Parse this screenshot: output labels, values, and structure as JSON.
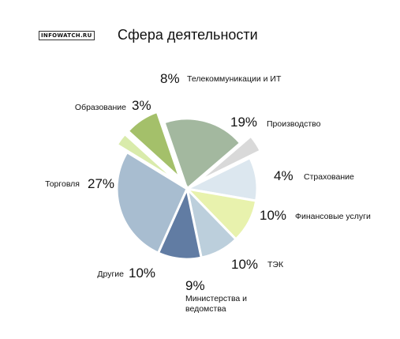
{
  "brand": "INFOWATCH.RU",
  "chart_data": {
    "type": "pie",
    "title": "Сфера деятельности",
    "slices": [
      {
        "label": "Производство",
        "value": 19,
        "value_label": "19%",
        "color": "#a3b89f",
        "exploded": false
      },
      {
        "label": "Страхование",
        "value": 4,
        "value_label": "4%",
        "color": "#d9d9d9",
        "exploded": true
      },
      {
        "label": "Финансовые услуги",
        "value": 10,
        "value_label": "10%",
        "color": "#dce7ef",
        "exploded": false
      },
      {
        "label": "ТЭК",
        "value": 10,
        "value_label": "10%",
        "color": "#e8f2ad",
        "exploded": false
      },
      {
        "label": [
          "Министерства и",
          "ведомства"
        ],
        "value": 9,
        "value_label": "9%",
        "color": "#bccfdc",
        "exploded": false
      },
      {
        "label": "Другие",
        "value": 10,
        "value_label": "10%",
        "color": "#617ca3",
        "exploded": false
      },
      {
        "label": "Торговля",
        "value": 27,
        "value_label": "27%",
        "color": "#a8bdd0",
        "exploded": false
      },
      {
        "label": "Образование",
        "value": 3,
        "value_label": "3%",
        "color": "#d9ebab",
        "exploded": true
      },
      {
        "label": "Телекоммуникации и ИТ",
        "value": 8,
        "value_label": "8%",
        "color": "#a4c06a",
        "exploded": true
      }
    ]
  }
}
